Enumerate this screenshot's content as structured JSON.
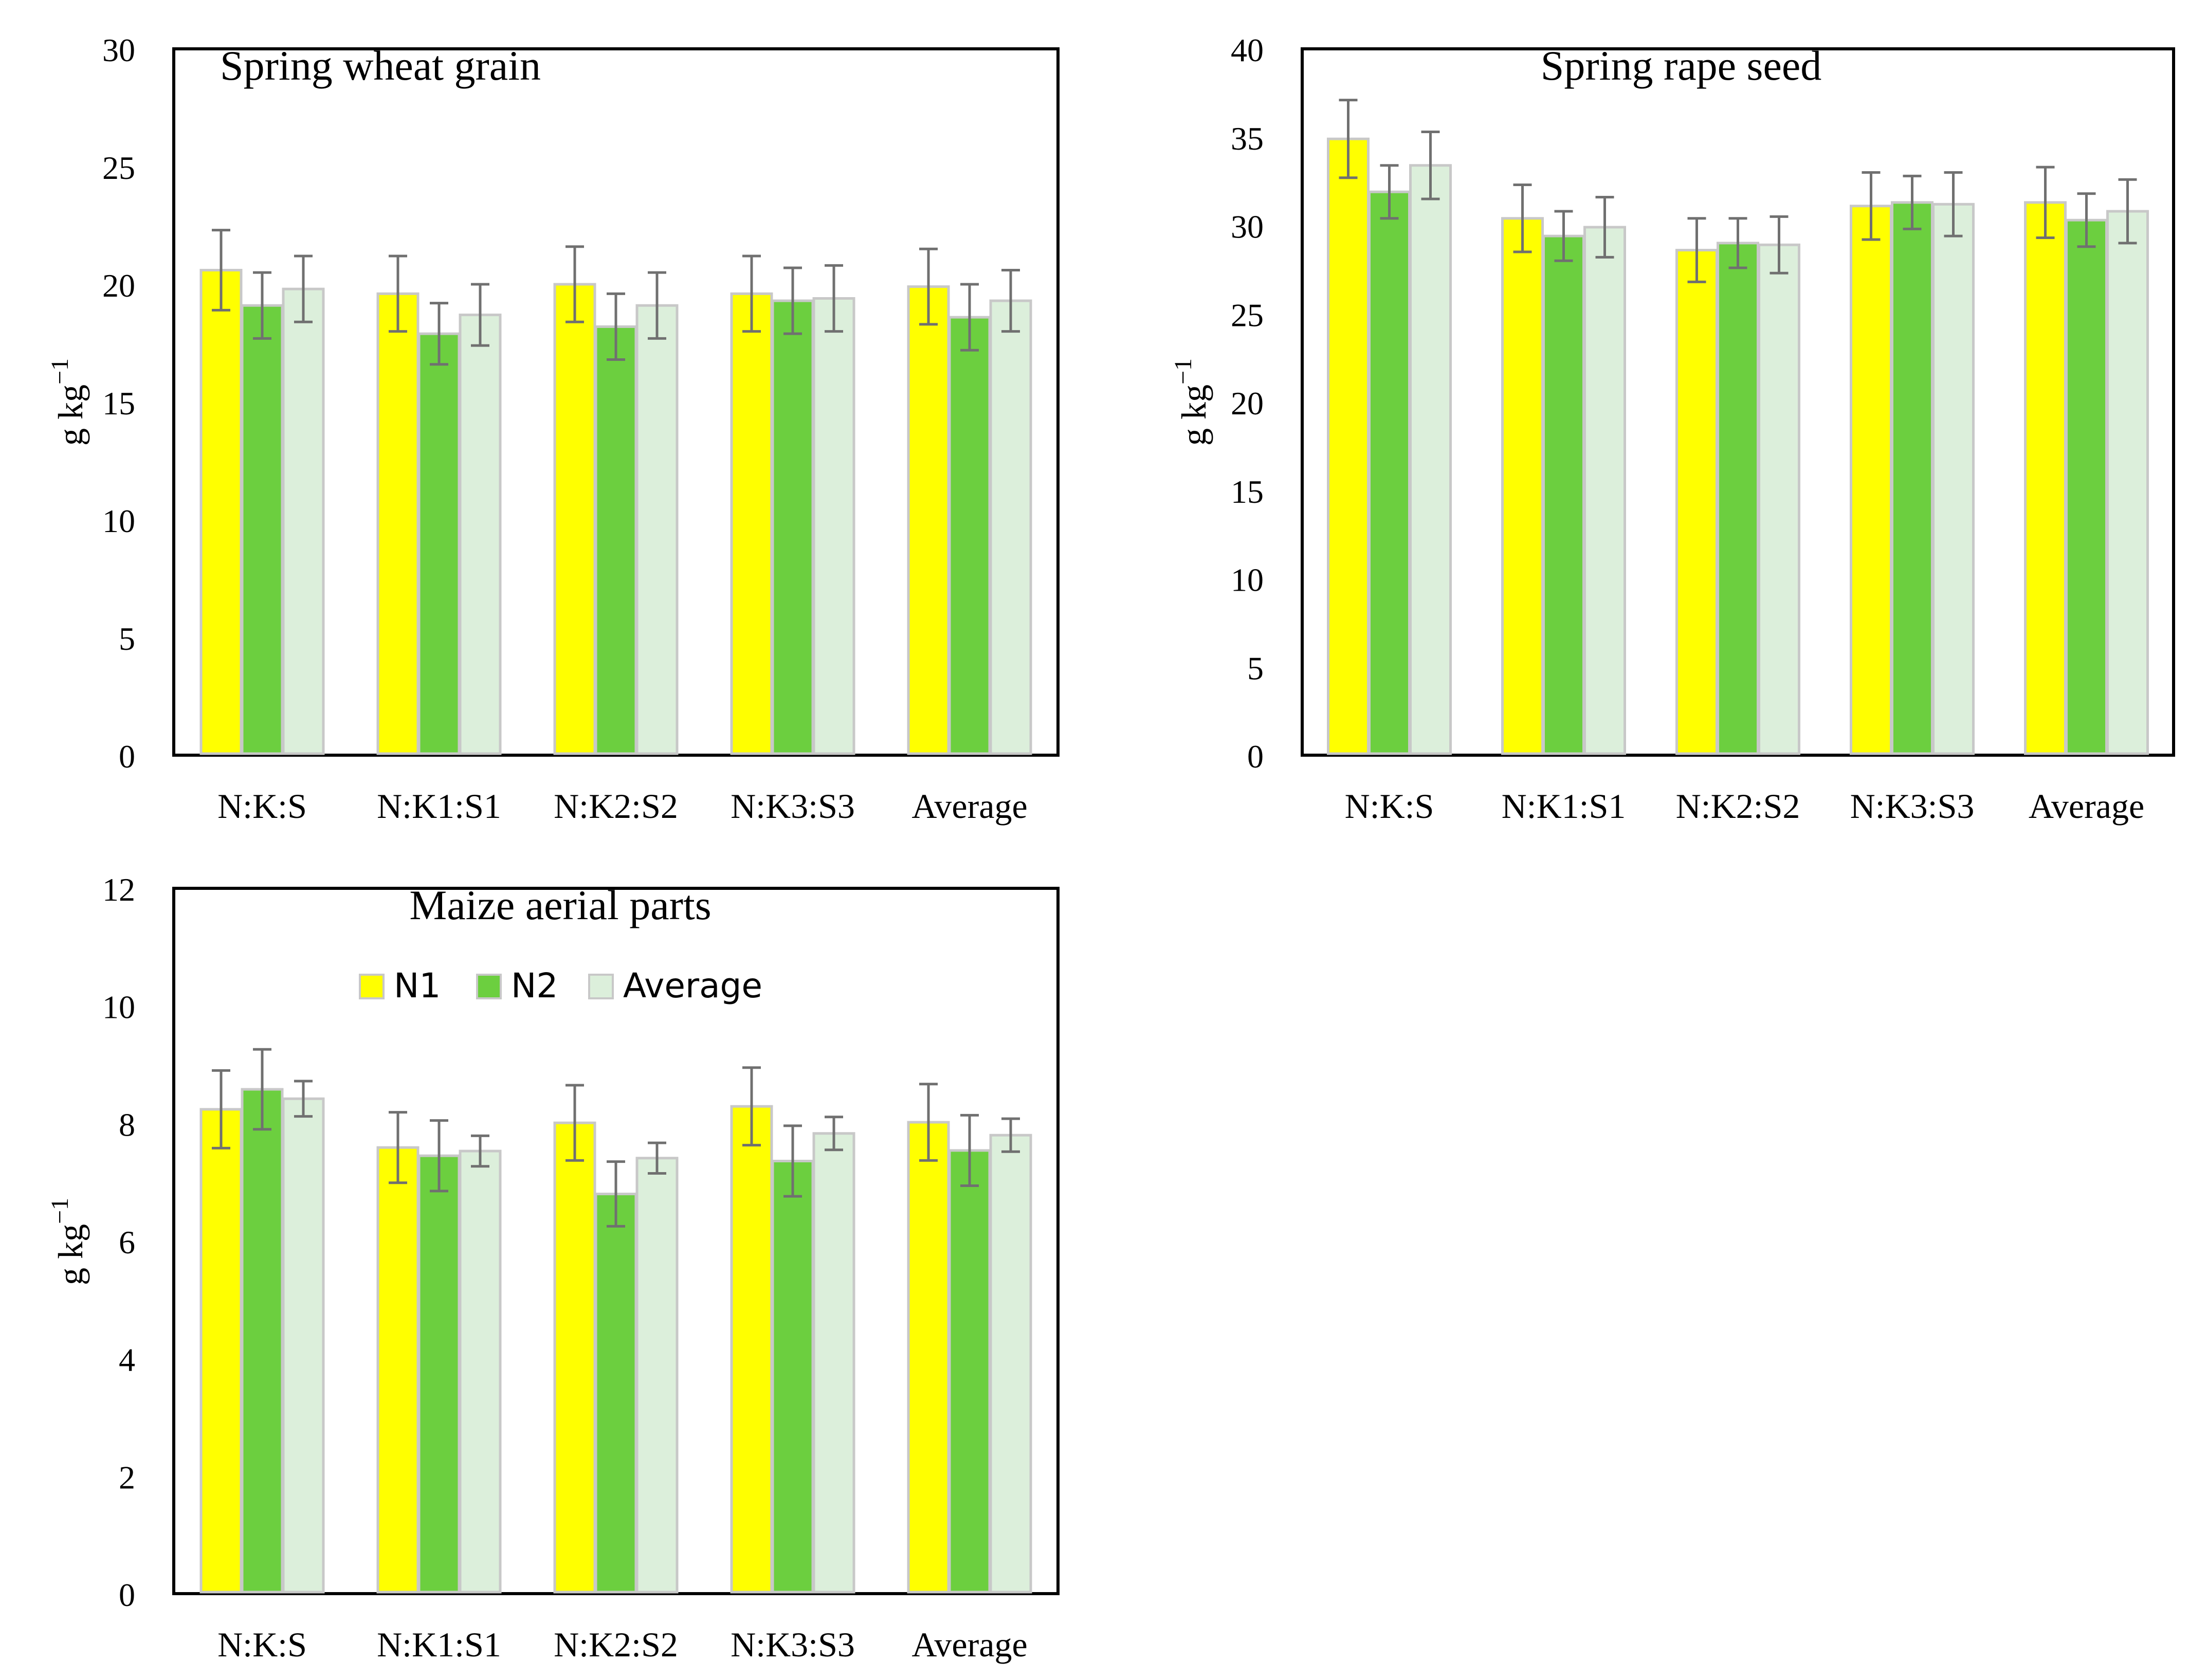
{
  "chart_data": [
    {
      "type": "bar",
      "title": "Spring wheat grain",
      "xlabel": "",
      "ylabel": "g kg",
      "ylabel_sup": "−1",
      "categories": [
        "N:K:S",
        "N:K1:S1",
        "N:K2:S2",
        "N:K3:S3",
        "Average"
      ],
      "ylim": [
        0,
        30
      ],
      "yticks": [
        0,
        5,
        10,
        15,
        20,
        25,
        30
      ],
      "series": [
        {
          "name": "N1",
          "values": [
            20.6,
            19.6,
            20.0,
            19.6,
            19.9
          ],
          "errors": [
            1.7,
            1.6,
            1.6,
            1.6,
            1.6
          ]
        },
        {
          "name": "N2",
          "values": [
            19.1,
            17.9,
            18.2,
            19.3,
            18.6
          ],
          "errors": [
            1.4,
            1.3,
            1.4,
            1.4,
            1.4
          ]
        },
        {
          "name": "Average",
          "values": [
            19.8,
            18.7,
            19.1,
            19.4,
            19.3
          ],
          "errors": [
            1.4,
            1.3,
            1.4,
            1.4,
            1.3
          ]
        }
      ],
      "grid": false
    },
    {
      "type": "bar",
      "title": "Spring rape seed",
      "xlabel": "",
      "ylabel": "g kg",
      "ylabel_sup": "−1",
      "categories": [
        "N:K:S",
        "N:K1:S1",
        "N:K2:S2",
        "N:K3:S3",
        "Average"
      ],
      "ylim": [
        0,
        40
      ],
      "yticks": [
        0,
        5,
        10,
        15,
        20,
        25,
        30,
        35,
        40
      ],
      "series": [
        {
          "name": "N1",
          "values": [
            34.9,
            30.4,
            28.6,
            31.1,
            31.3
          ],
          "errors": [
            2.2,
            1.9,
            1.8,
            1.9,
            2.0
          ]
        },
        {
          "name": "N2",
          "values": [
            31.9,
            29.4,
            29.0,
            31.3,
            30.3
          ],
          "errors": [
            1.5,
            1.4,
            1.4,
            1.5,
            1.5
          ]
        },
        {
          "name": "Average",
          "values": [
            33.4,
            29.9,
            28.9,
            31.2,
            30.8
          ],
          "errors": [
            1.9,
            1.7,
            1.6,
            1.8,
            1.8
          ]
        }
      ],
      "grid": false
    },
    {
      "type": "bar",
      "title": "Maize aerial parts",
      "xlabel": "",
      "ylabel": "g kg",
      "ylabel_sup": "−1",
      "categories": [
        "N:K:S",
        "N:K1:S1",
        "N:K2:S2",
        "N:K3:S3",
        "Average"
      ],
      "ylim": [
        0,
        12
      ],
      "yticks": [
        0,
        2,
        4,
        6,
        8,
        10,
        12
      ],
      "series": [
        {
          "name": "N1",
          "values": [
            8.24,
            7.59,
            8.01,
            8.29,
            8.02
          ],
          "errors": [
            0.66,
            0.6,
            0.64,
            0.66,
            0.65
          ]
        },
        {
          "name": "N2",
          "values": [
            8.58,
            7.45,
            6.8,
            7.36,
            7.54
          ],
          "errors": [
            0.68,
            0.6,
            0.55,
            0.6,
            0.6
          ]
        },
        {
          "name": "Average",
          "values": [
            8.42,
            7.53,
            7.41,
            7.83,
            7.8
          ],
          "errors": [
            0.3,
            0.26,
            0.26,
            0.28,
            0.28
          ]
        }
      ],
      "legend": {
        "position": "top",
        "entries": [
          "N1",
          "N2",
          "Average"
        ]
      },
      "grid": false
    }
  ],
  "colors": {
    "N1": "#ffff00",
    "N2": "#6ccf3f",
    "Average": "#dcefdb",
    "bar_edge": "#c8c8c8",
    "error_bar": "#707070",
    "axis": "#000000"
  }
}
